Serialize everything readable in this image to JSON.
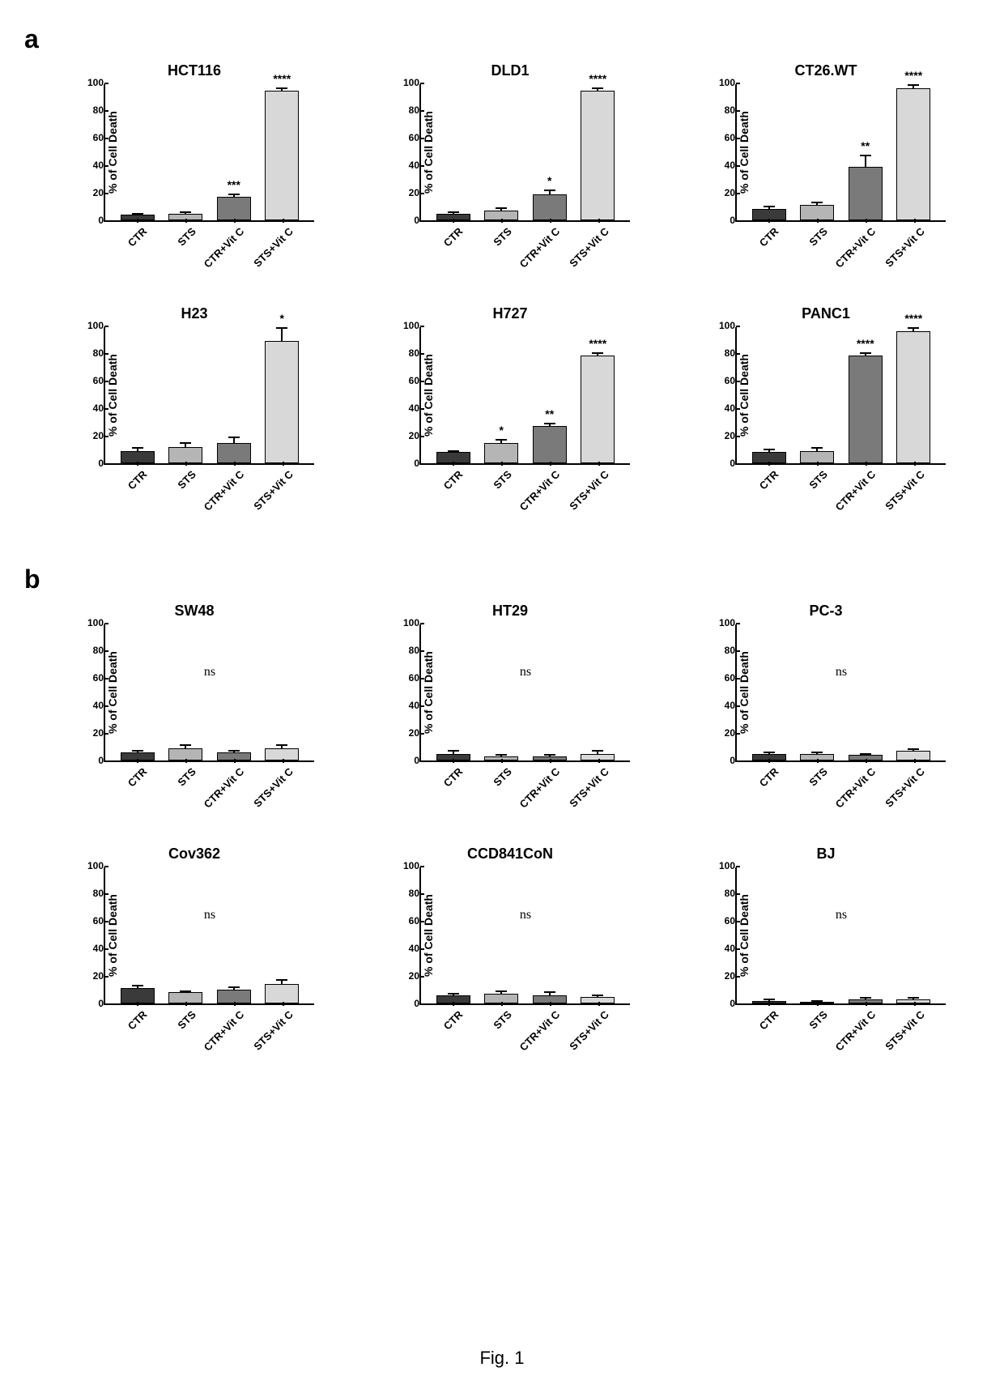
{
  "figure_caption": "Fig. 1",
  "sections": {
    "a": {
      "label": "a"
    },
    "b": {
      "label": "b"
    }
  },
  "common": {
    "y_label": "% of Cell Death",
    "ylim": [
      0,
      100
    ],
    "ytick_step": 20,
    "categories": [
      "CTR",
      "STS",
      "CTR+Vit C",
      "STS+Vit C"
    ],
    "bar_fills": [
      "#3a3a3a",
      "#b5b5b5",
      "#7a7a7a",
      "#d8d8d8"
    ],
    "background_color": "#ffffff",
    "axis_color": "#000000",
    "bar_border": "#000000",
    "title_fontsize": 18,
    "label_fontsize": 14,
    "tick_fontsize": 12
  },
  "charts_a": [
    {
      "title": "HCT116",
      "values": [
        4,
        5,
        17,
        94
      ],
      "errors": [
        1,
        1,
        2,
        2
      ],
      "sig": [
        "",
        "",
        "***",
        "****"
      ]
    },
    {
      "title": "DLD1",
      "values": [
        5,
        7,
        19,
        94
      ],
      "errors": [
        1,
        2,
        3,
        2
      ],
      "sig": [
        "",
        "",
        "*",
        "****"
      ]
    },
    {
      "title": "CT26.WT",
      "values": [
        8,
        11,
        39,
        96
      ],
      "errors": [
        2,
        2,
        8,
        2
      ],
      "sig": [
        "",
        "",
        "**",
        "****"
      ]
    },
    {
      "title": "H23",
      "values": [
        9,
        12,
        15,
        89
      ],
      "errors": [
        2,
        3,
        4,
        9
      ],
      "sig": [
        "",
        "",
        "",
        "*"
      ]
    },
    {
      "title": "H727",
      "values": [
        8,
        15,
        27,
        78
      ],
      "errors": [
        1,
        2,
        2,
        2
      ],
      "sig": [
        "",
        "*",
        "**",
        "****"
      ]
    },
    {
      "title": "PANC1",
      "values": [
        8,
        9,
        78,
        96
      ],
      "errors": [
        2,
        2,
        2,
        2
      ],
      "sig": [
        "",
        "",
        "****",
        "****"
      ]
    }
  ],
  "charts_b": [
    {
      "title": "SW48",
      "values": [
        6,
        9,
        6,
        9
      ],
      "errors": [
        1,
        2,
        1,
        2
      ],
      "ns": "ns"
    },
    {
      "title": "HT29",
      "values": [
        5,
        3,
        3,
        5
      ],
      "errors": [
        2,
        1,
        1,
        2
      ],
      "ns": "ns"
    },
    {
      "title": "PC-3",
      "values": [
        5,
        5,
        4,
        7
      ],
      "errors": [
        1,
        1,
        1,
        1
      ],
      "ns": "ns"
    },
    {
      "title": "Cov362",
      "values": [
        11,
        8,
        10,
        14
      ],
      "errors": [
        2,
        1,
        2,
        3
      ],
      "ns": "ns"
    },
    {
      "title": "CCD841CoN",
      "values": [
        6,
        7,
        6,
        5
      ],
      "errors": [
        1,
        2,
        2,
        1
      ],
      "ns": "ns"
    },
    {
      "title": "BJ",
      "values": [
        2,
        1,
        3,
        3
      ],
      "errors": [
        1,
        1,
        1,
        1
      ],
      "ns": "ns"
    }
  ]
}
